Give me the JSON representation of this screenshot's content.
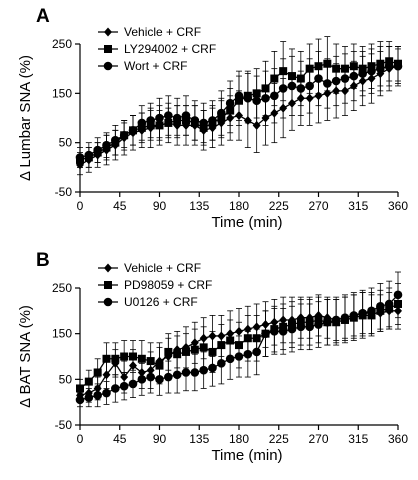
{
  "chart_data": [
    {
      "panel": "A",
      "type": "line",
      "xlabel": "Time (min)",
      "ylabel": "Δ Lumbar SNA (%)",
      "xlim": [
        0,
        360
      ],
      "ylim": [
        -50,
        250
      ],
      "x_ticks": [
        0,
        45,
        90,
        135,
        180,
        225,
        270,
        315,
        360
      ],
      "y_ticks": [
        -50,
        50,
        150,
        250
      ],
      "legend_position": "top-left",
      "x": [
        0,
        10,
        20,
        30,
        40,
        50,
        60,
        70,
        80,
        90,
        100,
        110,
        120,
        130,
        140,
        150,
        160,
        170,
        180,
        190,
        200,
        210,
        220,
        230,
        240,
        250,
        260,
        270,
        280,
        290,
        300,
        310,
        320,
        330,
        340,
        350,
        360
      ],
      "series": [
        {
          "name": "Vehicle + CRF",
          "marker": "diamond",
          "values": [
            5,
            15,
            25,
            35,
            45,
            60,
            70,
            75,
            80,
            85,
            90,
            85,
            85,
            85,
            75,
            80,
            90,
            100,
            105,
            95,
            85,
            100,
            110,
            120,
            130,
            140,
            140,
            145,
            150,
            155,
            155,
            165,
            175,
            180,
            190,
            200,
            205
          ],
          "errors": [
            20,
            25,
            25,
            30,
            30,
            35,
            35,
            35,
            40,
            40,
            40,
            40,
            40,
            40,
            40,
            40,
            45,
            45,
            50,
            55,
            55,
            55,
            60,
            60,
            55,
            55,
            55,
            55,
            55,
            55,
            50,
            50,
            50,
            50,
            45,
            45,
            40
          ]
        },
        {
          "name": "LY294002 + CRF",
          "marker": "square",
          "values": [
            15,
            20,
            30,
            40,
            50,
            65,
            75,
            80,
            85,
            85,
            90,
            95,
            95,
            90,
            80,
            90,
            100,
            115,
            135,
            145,
            150,
            160,
            180,
            195,
            185,
            180,
            200,
            205,
            210,
            200,
            200,
            205,
            200,
            205,
            210,
            215,
            210
          ],
          "errors": [
            15,
            20,
            20,
            25,
            25,
            25,
            30,
            30,
            30,
            30,
            30,
            30,
            30,
            35,
            35,
            35,
            40,
            45,
            50,
            50,
            50,
            55,
            55,
            60,
            55,
            55,
            50,
            55,
            55,
            50,
            45,
            45,
            45,
            45,
            45,
            40,
            35
          ]
        },
        {
          "name": "Wort + CRF",
          "marker": "circle",
          "values": [
            20,
            25,
            35,
            45,
            55,
            65,
            75,
            90,
            95,
            100,
            105,
            100,
            105,
            95,
            90,
            95,
            110,
            130,
            145,
            140,
            135,
            140,
            145,
            160,
            165,
            160,
            165,
            180,
            170,
            175,
            180,
            185,
            190,
            195,
            200,
            205,
            205
          ],
          "errors": [
            20,
            25,
            25,
            25,
            30,
            30,
            30,
            35,
            35,
            40,
            40,
            40,
            40,
            40,
            40,
            40,
            45,
            45,
            50,
            50,
            50,
            55,
            55,
            60,
            60,
            55,
            55,
            55,
            50,
            50,
            50,
            50,
            45,
            45,
            45,
            40,
            35
          ]
        }
      ]
    },
    {
      "panel": "B",
      "type": "line",
      "xlabel": "Time (min)",
      "ylabel": "Δ BAT SNA (%)",
      "xlim": [
        0,
        360
      ],
      "ylim": [
        -50,
        250
      ],
      "x_ticks": [
        0,
        45,
        90,
        135,
        180,
        225,
        270,
        315,
        360
      ],
      "y_ticks": [
        -50,
        50,
        150,
        250
      ],
      "legend_position": "top-left",
      "x": [
        0,
        10,
        20,
        30,
        40,
        50,
        60,
        70,
        80,
        90,
        100,
        110,
        120,
        130,
        140,
        150,
        160,
        170,
        180,
        190,
        200,
        210,
        220,
        230,
        240,
        250,
        260,
        270,
        280,
        290,
        300,
        310,
        320,
        330,
        340,
        350,
        360
      ],
      "series": [
        {
          "name": "Vehicle + CRF",
          "marker": "diamond",
          "values": [
            15,
            20,
            30,
            60,
            85,
            55,
            80,
            65,
            70,
            90,
            100,
            115,
            120,
            130,
            140,
            145,
            145,
            150,
            155,
            160,
            165,
            170,
            175,
            180,
            180,
            185,
            185,
            190,
            185,
            180,
            185,
            190,
            195,
            195,
            195,
            200,
            200
          ],
          "errors": [
            15,
            20,
            25,
            30,
            30,
            35,
            35,
            35,
            40,
            40,
            40,
            40,
            45,
            45,
            45,
            45,
            45,
            50,
            50,
            50,
            50,
            50,
            50,
            50,
            50,
            45,
            45,
            45,
            45,
            45,
            45,
            45,
            45,
            45,
            40,
            40,
            40
          ]
        },
        {
          "name": "PD98059 + CRF",
          "marker": "square",
          "values": [
            30,
            45,
            65,
            95,
            95,
            100,
            100,
            95,
            90,
            80,
            110,
            105,
            110,
            115,
            120,
            110,
            125,
            135,
            125,
            140,
            140,
            150,
            160,
            165,
            170,
            175,
            175,
            180,
            175,
            175,
            180,
            185,
            190,
            190,
            200,
            205,
            215
          ],
          "errors": [
            20,
            25,
            30,
            35,
            35,
            35,
            35,
            40,
            40,
            40,
            40,
            40,
            40,
            45,
            45,
            45,
            45,
            45,
            50,
            50,
            50,
            50,
            50,
            50,
            50,
            50,
            50,
            50,
            50,
            50,
            50,
            50,
            50,
            45,
            45,
            45,
            45
          ]
        },
        {
          "name": "U0126 + CRF",
          "marker": "circle",
          "values": [
            5,
            10,
            15,
            20,
            30,
            35,
            40,
            50,
            55,
            50,
            55,
            60,
            65,
            65,
            70,
            75,
            85,
            95,
            100,
            105,
            110,
            150,
            155,
            155,
            160,
            165,
            165,
            170,
            175,
            180,
            185,
            190,
            195,
            200,
            210,
            215,
            235
          ],
          "errors": [
            15,
            20,
            25,
            25,
            30,
            30,
            30,
            35,
            35,
            35,
            35,
            40,
            40,
            40,
            40,
            40,
            45,
            45,
            45,
            50,
            50,
            50,
            50,
            50,
            50,
            50,
            50,
            50,
            50,
            50,
            50,
            50,
            50,
            50,
            50,
            50,
            50
          ]
        }
      ]
    }
  ]
}
